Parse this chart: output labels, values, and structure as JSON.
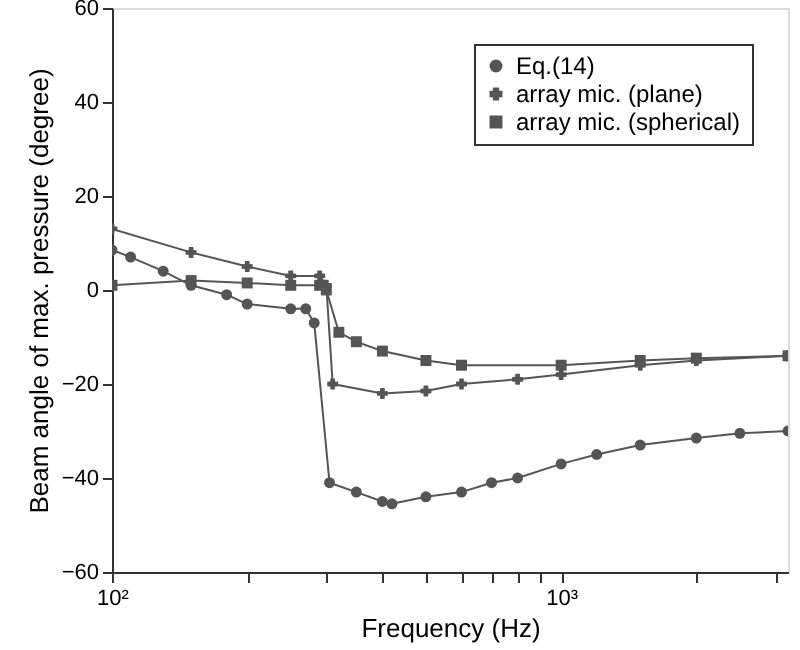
{
  "chart_data": {
    "type": "line",
    "xlabel": "Frequency (Hz)",
    "ylabel": "Beam angle of max. pressure (degree)",
    "log": "x",
    "xlim": [
      100,
      3200
    ],
    "ylim": [
      -60,
      60
    ],
    "yticks": [
      -60,
      -40,
      -20,
      0,
      20,
      40,
      60
    ],
    "xticks": [
      {
        "value": 100,
        "label": "10²"
      },
      {
        "value": 200,
        "label": null
      },
      {
        "value": 300,
        "label": null
      },
      {
        "value": 400,
        "label": null
      },
      {
        "value": 500,
        "label": null
      },
      {
        "value": 600,
        "label": null
      },
      {
        "value": 700,
        "label": null
      },
      {
        "value": 800,
        "label": null
      },
      {
        "value": 900,
        "label": null
      },
      {
        "value": 1000,
        "label": "10³"
      },
      {
        "value": 2000,
        "label": null
      },
      {
        "value": 3000,
        "label": null
      }
    ],
    "grid": false,
    "legend": "top right",
    "line_style": "solid",
    "series": [
      {
        "name": "Eq.(14)",
        "color": "#555555",
        "marker": "circle",
        "x": [
          100,
          110,
          130,
          150,
          180,
          200,
          250,
          270,
          282,
          305,
          350,
          400,
          420,
          500,
          600,
          700,
          800,
          1000,
          1200,
          1500,
          2000,
          2500,
          3200
        ],
        "values": [
          8.5,
          7,
          4,
          1,
          -1,
          -3,
          -4,
          -4,
          -7,
          -41,
          -43,
          -45,
          -45.5,
          -44,
          -43,
          -41,
          -40,
          -37,
          -35,
          -33,
          -31.5,
          -30.5,
          -30
        ]
      },
      {
        "name": "array mic. (plane)",
        "color": "#555555",
        "marker": "cross",
        "x": [
          100,
          150,
          200,
          250,
          290,
          300,
          310,
          400,
          500,
          600,
          800,
          1000,
          1500,
          2000,
          3200
        ],
        "values": [
          13,
          8,
          5,
          3,
          3,
          1,
          -20,
          -22,
          -21.5,
          -20,
          -19,
          -18,
          -16,
          -15,
          -14
        ]
      },
      {
        "name": "array mic. (spherical)",
        "color": "#555555",
        "marker": "square",
        "x": [
          100,
          150,
          200,
          250,
          290,
          300,
          320,
          350,
          400,
          500,
          600,
          1000,
          1500,
          2000,
          3200
        ],
        "values": [
          1,
          2,
          1.5,
          1,
          1,
          0,
          -9,
          -11,
          -13,
          -15,
          -16,
          -16,
          -15,
          -14.5,
          -14
        ]
      }
    ]
  }
}
